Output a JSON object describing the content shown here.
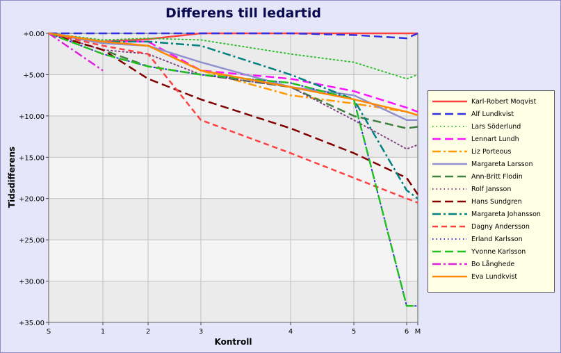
{
  "chart_data": {
    "type": "line",
    "title": "Differens till ledartid",
    "xlabel": "Kontroll",
    "ylabel": "Tidsdifferens",
    "x_ticks": [
      "S",
      "1",
      "2",
      "3",
      "4",
      "5",
      "6",
      "M"
    ],
    "x_positions": [
      0,
      1,
      2,
      3,
      4,
      5,
      6,
      6.2
    ],
    "y_ticks": [
      "+0.00",
      "+5.00",
      "+10.00",
      "+15.00",
      "+20.00",
      "+25.00",
      "+30.00",
      "+35.00"
    ],
    "ylim": [
      0,
      35
    ],
    "grid": true,
    "legend_position": "right",
    "series": [
      {
        "name": "Karl-Robert Moqvist",
        "color": "#ff4040",
        "dash": "solid",
        "values": [
          0,
          1.0,
          0.7,
          0.0,
          0.0,
          0.0,
          0.0,
          0.0
        ]
      },
      {
        "name": "Alf Lundkvist",
        "color": "#3030e0",
        "dash": "longdash",
        "values": [
          0,
          0.0,
          0.0,
          0.0,
          0.0,
          0.2,
          0.6,
          0.0
        ]
      },
      {
        "name": "Lars Söderlund",
        "color": "#30c030",
        "dash": "dot",
        "values": [
          0,
          0.8,
          0.6,
          0.8,
          2.5,
          3.5,
          5.5,
          5.0
        ]
      },
      {
        "name": "Lennart Lundh",
        "color": "#ff10ff",
        "dash": "longdash",
        "values": [
          0,
          1.0,
          1.0,
          4.5,
          5.5,
          7.0,
          9.0,
          9.5
        ]
      },
      {
        "name": "Liz Porteous",
        "color": "#ff9900",
        "dash": "dashdot",
        "values": [
          0,
          1.0,
          1.5,
          4.5,
          7.5,
          8.5,
          9.5,
          9.9
        ]
      },
      {
        "name": "Margareta Larsson",
        "color": "#9090d0",
        "dash": "solid",
        "values": [
          0,
          1.2,
          1.5,
          3.5,
          6.5,
          7.5,
          10.5,
          10.5
        ]
      },
      {
        "name": "Ann-Britt Flodin",
        "color": "#408040",
        "dash": "longdash",
        "values": [
          0,
          2.0,
          4.0,
          5.0,
          6.5,
          10.0,
          11.5,
          11.3
        ]
      },
      {
        "name": "Rolf Jansson",
        "color": "#804080",
        "dash": "dot",
        "values": [
          0,
          2.0,
          2.5,
          5.0,
          6.5,
          10.5,
          14.0,
          13.5
        ]
      },
      {
        "name": "Hans Sundgren",
        "color": "#800000",
        "dash": "longdash",
        "values": [
          0,
          2.0,
          5.5,
          8.0,
          11.5,
          14.5,
          17.5,
          19.5
        ]
      },
      {
        "name": "Margareta Johansson",
        "color": "#008080",
        "dash": "dashdot",
        "values": [
          0,
          1.0,
          1.0,
          1.5,
          5.0,
          8.0,
          19.0,
          20.0
        ]
      },
      {
        "name": "Dagny Andersson",
        "color": "#ff4040",
        "dash": "dash",
        "values": [
          0,
          1.5,
          2.5,
          10.5,
          14.5,
          17.5,
          20.0,
          20.5
        ]
      },
      {
        "name": "Erland Karlsson",
        "color": "#3030e0",
        "dash": "dot",
        "values": [
          0,
          2.5,
          4.0,
          5.0,
          6.0,
          8.0,
          33.0,
          33.0
        ]
      },
      {
        "name": "Yvonne Karlsson",
        "color": "#20c020",
        "dash": "longdash",
        "values": [
          0,
          2.5,
          4.0,
          5.0,
          6.0,
          8.0,
          33.0,
          33.0
        ]
      },
      {
        "name": "Bo Långhede",
        "color": "#e020e0",
        "dash": "dashdot",
        "values": [
          0,
          4.5
        ]
      },
      {
        "name": "Eva Lundkvist",
        "color": "#ff8800",
        "dash": "solid",
        "values": [
          0,
          1.0,
          1.5,
          4.5,
          6.5,
          8.0,
          9.5,
          9.9
        ]
      }
    ]
  }
}
